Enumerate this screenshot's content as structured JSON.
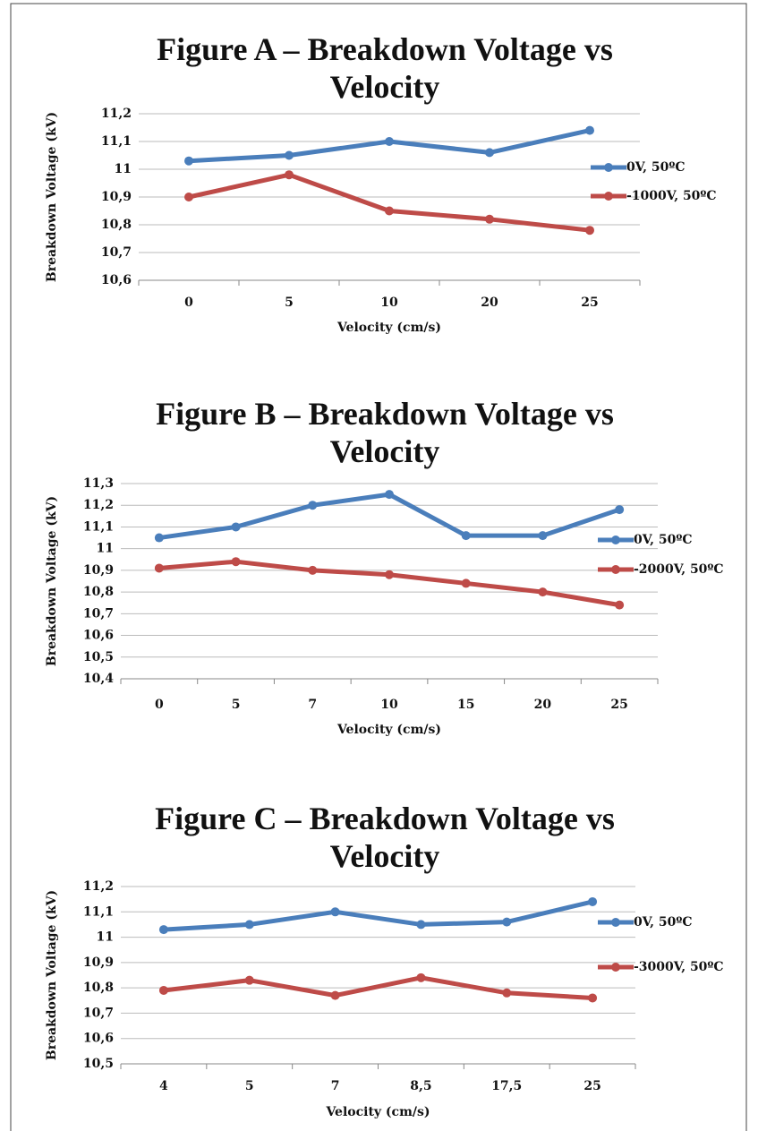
{
  "chart_data": [
    {
      "type": "line",
      "title": "Figure A – Breakdown Voltage vs Velocity",
      "x_label": "Velocity (cm/s)",
      "y_label": "Breakdown Voltage (kV)",
      "categories": [
        "0",
        "5",
        "10",
        "20",
        "25"
      ],
      "series": [
        {
          "name": "0V, 50ºC",
          "color": "#4a7ebb",
          "values": [
            11.03,
            11.05,
            11.1,
            11.06,
            11.14
          ]
        },
        {
          "name": "-1000V, 50ºC",
          "color": "#be4b48",
          "values": [
            10.9,
            10.98,
            10.85,
            10.82,
            10.78
          ]
        }
      ],
      "ylim": [
        10.6,
        11.2
      ],
      "yticks": [
        {
          "value": 10.6,
          "label": "10,6"
        },
        {
          "value": 10.7,
          "label": "10,7"
        },
        {
          "value": 10.8,
          "label": "10,8"
        },
        {
          "value": 10.9,
          "label": "10,9"
        },
        11,
        {
          "value": 11.1,
          "label": "11,1"
        },
        {
          "value": 11.2,
          "label": "11,2"
        }
      ],
      "grid": true,
      "legend": "right"
    },
    {
      "type": "line",
      "title": "Figure B – Breakdown Voltage vs Velocity",
      "x_label": "Velocity (cm/s)",
      "y_label": "Breakdown Voltage (kV)",
      "categories": [
        "0",
        "5",
        "7",
        "10",
        "15",
        "20",
        "25"
      ],
      "series": [
        {
          "name": "0V, 50ºC",
          "color": "#4a7ebb",
          "values": [
            11.05,
            11.1,
            11.2,
            11.25,
            11.06,
            11.06,
            11.18
          ]
        },
        {
          "name": "-2000V, 50ºC",
          "color": "#be4b48",
          "values": [
            10.91,
            10.94,
            10.9,
            10.88,
            10.84,
            10.8,
            10.74
          ]
        }
      ],
      "ylim": [
        10.4,
        11.3
      ],
      "yticks": [
        {
          "value": 10.4,
          "label": "10,4"
        },
        {
          "value": 10.5,
          "label": "10,5"
        },
        {
          "value": 10.6,
          "label": "10,6"
        },
        {
          "value": 10.7,
          "label": "10,7"
        },
        {
          "value": 10.8,
          "label": "10,8"
        },
        {
          "value": 10.9,
          "label": "10,9"
        },
        11,
        {
          "value": 11.1,
          "label": "11,1"
        },
        {
          "value": 11.2,
          "label": "11,2"
        },
        {
          "value": 11.3,
          "label": "11,3"
        }
      ],
      "grid": true,
      "legend": "right"
    },
    {
      "type": "line",
      "title": "Figure C – Breakdown Voltage vs Velocity",
      "x_label": "Velocity (cm/s)",
      "y_label": "Breakdown Voltage (kV)",
      "categories": [
        "4",
        "5",
        "7",
        "8,5",
        "17,5",
        "25"
      ],
      "series": [
        {
          "name": "0V, 50ºC",
          "color": "#4a7ebb",
          "values": [
            11.03,
            11.05,
            11.1,
            11.05,
            11.06,
            11.14
          ]
        },
        {
          "name": "-3000V, 50ºC",
          "color": "#be4b48",
          "values": [
            10.79,
            10.83,
            10.77,
            10.84,
            10.78,
            10.76
          ]
        }
      ],
      "ylim": [
        10.5,
        11.2
      ],
      "yticks": [
        {
          "value": 10.5,
          "label": "10,5"
        },
        {
          "value": 10.6,
          "label": "10,6"
        },
        {
          "value": 10.7,
          "label": "10,7"
        },
        {
          "value": 10.8,
          "label": "10,8"
        },
        {
          "value": 10.9,
          "label": "10,9"
        },
        11,
        {
          "value": 11.1,
          "label": "11,1"
        },
        {
          "value": 11.2,
          "label": "11,2"
        }
      ],
      "grid": true,
      "legend": "right"
    }
  ]
}
